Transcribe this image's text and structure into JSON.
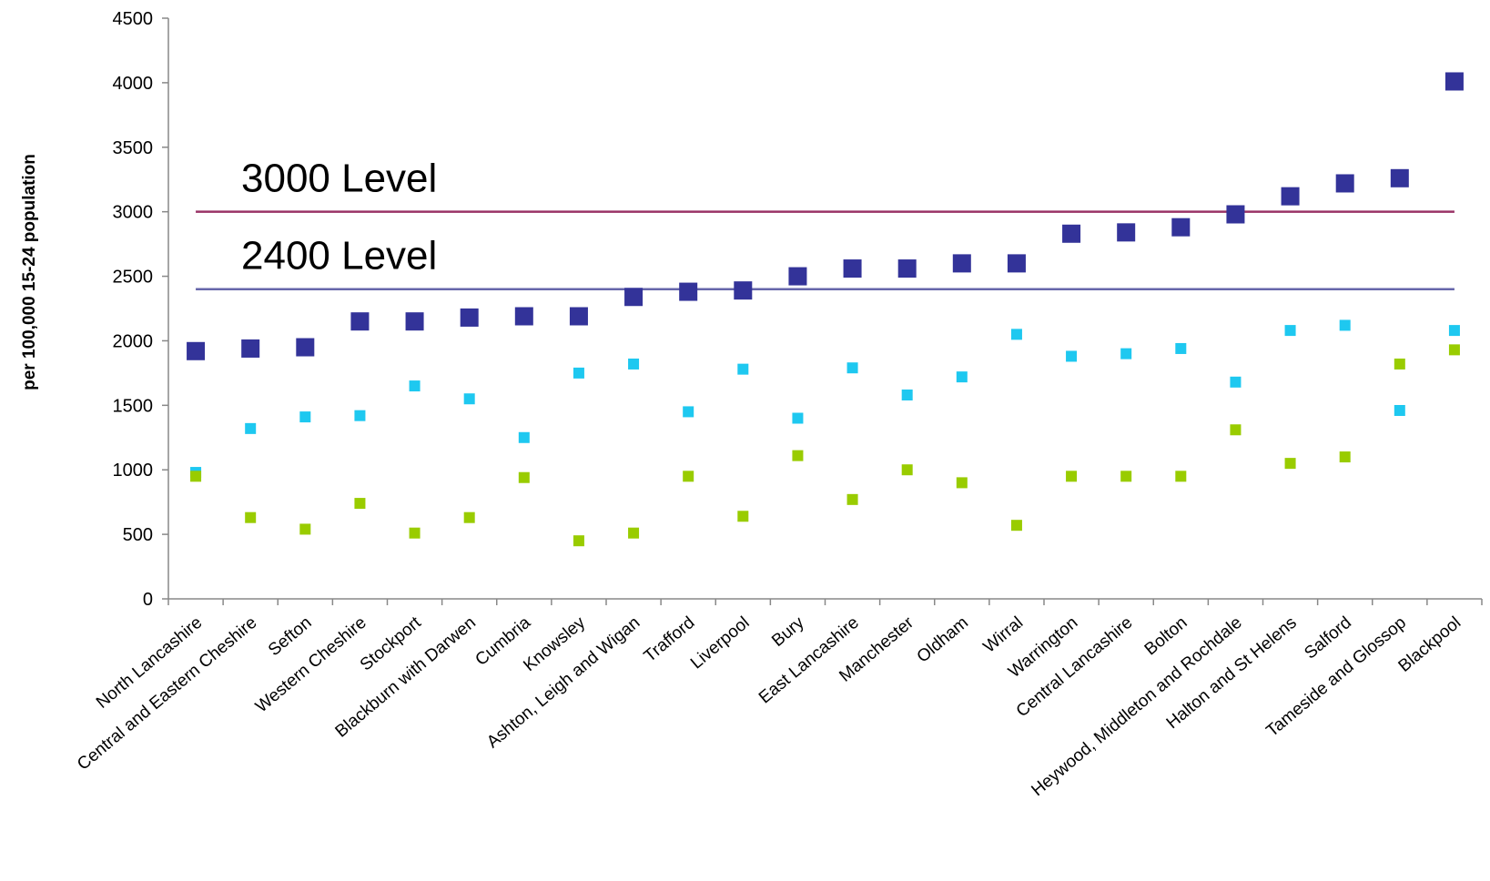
{
  "chart_data": {
    "type": "scatter",
    "ylabel": "per 100,000 15-24 population",
    "ylim": [
      0,
      4500
    ],
    "yticks": [
      0,
      500,
      1000,
      1500,
      2000,
      2500,
      3000,
      3500,
      4000,
      4500
    ],
    "grid": false,
    "legend": "none",
    "categories": [
      "North Lancashire",
      "Central and Eastern Cheshire",
      "Sefton",
      "Western Cheshire",
      "Stockport",
      "Blackburn with Darwen",
      "Cumbria",
      "Knowsley",
      "Ashton, Leigh and Wigan",
      "Trafford",
      "Liverpool",
      "Bury",
      "East Lancashire",
      "Manchester",
      "Oldham",
      "Wirral",
      "Warrington",
      "Central Lancashire",
      "Bolton",
      "Heywood, Middleton and Rochdale",
      "Halton and St Helens",
      "Salford",
      "Tameside and Glossop",
      "Blackpool"
    ],
    "series": [
      {
        "color": "#333399",
        "marker": "large-square",
        "values": [
          1920,
          1940,
          1950,
          2150,
          2150,
          2180,
          2190,
          2190,
          2340,
          2380,
          2390,
          2500,
          2560,
          2560,
          2600,
          2600,
          2830,
          2840,
          2880,
          2980,
          3120,
          3220,
          3260,
          4010
        ]
      },
      {
        "color": "#1ec8f0",
        "marker": "small-square",
        "values": [
          980,
          1320,
          1410,
          1420,
          1650,
          1550,
          1250,
          1750,
          1820,
          1450,
          1780,
          1400,
          1790,
          1580,
          1720,
          2050,
          1880,
          1900,
          1940,
          1680,
          2080,
          2120,
          1460,
          2080
        ]
      },
      {
        "color": "#99cc00",
        "marker": "small-square",
        "values": [
          950,
          630,
          540,
          740,
          510,
          630,
          940,
          450,
          510,
          950,
          640,
          1110,
          770,
          1000,
          900,
          570,
          950,
          950,
          950,
          1310,
          1050,
          1100,
          1820,
          1930
        ]
      }
    ],
    "reference_lines": [
      {
        "label": "3000 Level",
        "value": 3000,
        "color": "#993366"
      },
      {
        "label": "2400 Level",
        "value": 2400,
        "color": "#6666aa"
      }
    ]
  }
}
